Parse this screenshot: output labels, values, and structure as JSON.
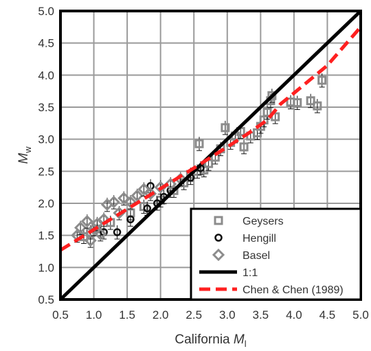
{
  "chart_data": {
    "type": "scatter",
    "xlabel": "California",
    "xlabel_subscript": "l",
    "xlabel_math": "M",
    "ylabel_math": "M",
    "ylabel_subscript": "w",
    "xlim": [
      0.5,
      5.0
    ],
    "ylim": [
      0.5,
      5.0
    ],
    "x_ticks": [
      "0.5",
      "1.0",
      "1.5",
      "2.0",
      "2.5",
      "3.0",
      "3.5",
      "4.0",
      "4.5",
      "5.0"
    ],
    "y_ticks": [
      "0.5",
      "1.0",
      "1.5",
      "2.0",
      "2.5",
      "3.0",
      "3.5",
      "4.0",
      "4.5",
      "5.0"
    ],
    "grid": true,
    "legend_position": "bottom-right",
    "series": [
      {
        "name": "Geysers",
        "marker": "square",
        "color": "#8c8c8c",
        "points": [
          [
            0.85,
            1.48
          ],
          [
            0.95,
            1.55
          ],
          [
            1.05,
            1.6
          ],
          [
            1.25,
            1.7
          ],
          [
            1.55,
            1.85
          ],
          [
            1.75,
            1.95
          ],
          [
            2.0,
            2.05
          ],
          [
            2.2,
            2.2
          ],
          [
            2.35,
            2.32
          ],
          [
            2.45,
            2.45
          ],
          [
            2.55,
            2.5
          ],
          [
            2.58,
            2.93
          ],
          [
            2.65,
            2.52
          ],
          [
            2.72,
            2.62
          ],
          [
            2.82,
            2.72
          ],
          [
            2.9,
            2.85
          ],
          [
            2.97,
            3.18
          ],
          [
            3.05,
            2.95
          ],
          [
            3.12,
            3.05
          ],
          [
            3.2,
            3.12
          ],
          [
            3.25,
            2.88
          ],
          [
            3.35,
            3.05
          ],
          [
            3.45,
            3.1
          ],
          [
            3.5,
            3.2
          ],
          [
            3.55,
            3.3
          ],
          [
            3.6,
            3.42
          ],
          [
            3.65,
            3.6
          ],
          [
            3.67,
            3.68
          ],
          [
            3.72,
            3.35
          ],
          [
            3.95,
            3.58
          ],
          [
            4.05,
            3.57
          ],
          [
            4.25,
            3.6
          ],
          [
            4.35,
            3.52
          ],
          [
            4.42,
            3.92
          ]
        ]
      },
      {
        "name": "Hengill",
        "marker": "circle",
        "color": "#111111",
        "points": [
          [
            1.15,
            1.55
          ],
          [
            1.35,
            1.55
          ],
          [
            1.55,
            1.75
          ],
          [
            1.8,
            1.92
          ],
          [
            1.85,
            2.27
          ],
          [
            2.05,
            2.1
          ],
          [
            2.15,
            2.2
          ],
          [
            2.45,
            2.4
          ],
          [
            2.6,
            2.55
          ],
          [
            1.95,
            2.0
          ]
        ]
      },
      {
        "name": "Basel",
        "marker": "diamond",
        "color": "#8c8c8c",
        "points": [
          [
            0.75,
            1.5
          ],
          [
            0.8,
            1.62
          ],
          [
            0.9,
            1.72
          ],
          [
            0.95,
            1.42
          ],
          [
            1.0,
            1.6
          ],
          [
            1.05,
            1.68
          ],
          [
            1.1,
            1.52
          ],
          [
            1.15,
            1.75
          ],
          [
            1.2,
            1.98
          ],
          [
            1.3,
            2.02
          ],
          [
            1.38,
            1.85
          ],
          [
            1.45,
            2.08
          ],
          [
            1.55,
            2.02
          ],
          [
            1.65,
            2.12
          ],
          [
            1.75,
            2.22
          ],
          [
            1.85,
            2.15
          ],
          [
            2.0,
            2.25
          ],
          [
            2.15,
            2.3
          ],
          [
            2.3,
            2.38
          ]
        ]
      },
      {
        "name": "1:1",
        "line": true,
        "color": "#000000",
        "points": [
          [
            0.5,
            0.5
          ],
          [
            5.0,
            5.0
          ]
        ]
      },
      {
        "name": "Chen & Chen (1989)",
        "line": true,
        "dashed": true,
        "color": "#ff2020",
        "points": [
          [
            0.5,
            1.27
          ],
          [
            1.0,
            1.59
          ],
          [
            1.5,
            1.91
          ],
          [
            2.0,
            2.23
          ],
          [
            2.5,
            2.55
          ],
          [
            3.0,
            2.88
          ],
          [
            3.3,
            3.08
          ],
          [
            3.6,
            3.3
          ],
          [
            3.8,
            3.55
          ],
          [
            4.0,
            3.72
          ],
          [
            4.5,
            4.15
          ],
          [
            5.0,
            4.75
          ]
        ]
      }
    ]
  }
}
